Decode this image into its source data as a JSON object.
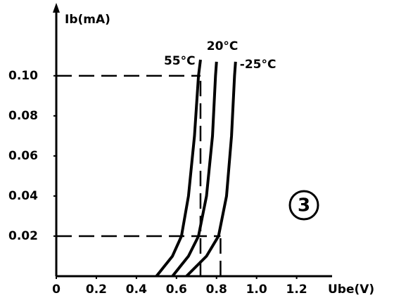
{
  "chart_data": {
    "type": "line",
    "y_label": "Ib(mA)",
    "x_label": "Ube(V)",
    "annotation": "3",
    "xlim": [
      0,
      1.37
    ],
    "ylim": [
      0,
      0.135
    ],
    "xticks": [
      0,
      0.2,
      0.4,
      0.6,
      0.8,
      {
        "value": 1,
        "label": "1.0"
      },
      1.2
    ],
    "yticks": [
      0.02,
      0.04,
      0.06,
      0.08,
      {
        "value": 0.1,
        "label": "0.10"
      }
    ],
    "series": [
      {
        "name": "55°C",
        "color": "#000000",
        "x": [
          0.5,
          0.58,
          0.625,
          0.66,
          0.69,
          0.71,
          0.72
        ],
        "values": [
          0,
          0.01,
          0.02,
          0.04,
          0.07,
          0.1,
          0.108
        ]
      },
      {
        "name": "20°C",
        "color": "#000000",
        "x": [
          0.58,
          0.66,
          0.71,
          0.75,
          0.78,
          0.795,
          0.8
        ],
        "values": [
          0,
          0.01,
          0.02,
          0.04,
          0.07,
          0.1,
          0.107
        ]
      },
      {
        "name": "-25°C",
        "color": "#000000",
        "x": [
          0.65,
          0.75,
          0.81,
          0.85,
          0.875,
          0.89,
          0.895
        ],
        "values": [
          0,
          0.01,
          0.02,
          0.04,
          0.07,
          0.1,
          0.107
        ]
      }
    ],
    "guides": [
      {
        "x": 0.72,
        "y": 0.1
      },
      {
        "x": 0.82,
        "y": 0.02
      }
    ]
  }
}
